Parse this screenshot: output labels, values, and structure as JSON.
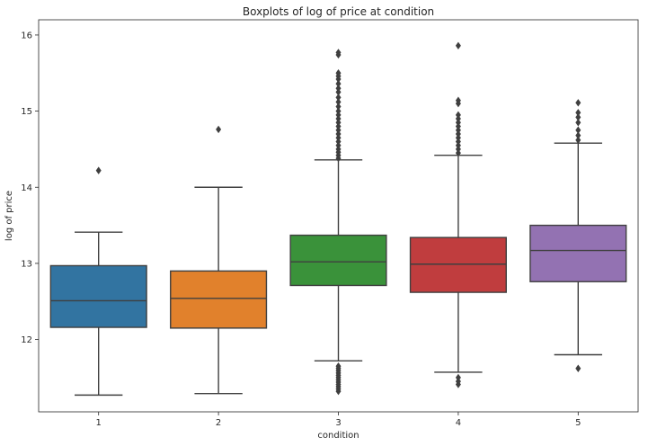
{
  "chart_data": {
    "type": "box",
    "title": "Boxplots of log of price at condition",
    "xlabel": "condition",
    "ylabel": "log of price",
    "ylim": [
      11.05,
      16.2
    ],
    "yticks": [
      12,
      13,
      14,
      15,
      16
    ],
    "grid": false,
    "categories": [
      "1",
      "2",
      "3",
      "4",
      "5"
    ],
    "colors": [
      "#3274a1",
      "#e1812c",
      "#3a923a",
      "#c03d3e",
      "#9372b2"
    ],
    "boxes": [
      {
        "category": "1",
        "whisker_low": 11.27,
        "q1": 12.16,
        "median": 12.51,
        "q3": 12.97,
        "whisker_high": 13.41,
        "outliers": [
          14.22
        ]
      },
      {
        "category": "2",
        "whisker_low": 11.29,
        "q1": 12.15,
        "median": 12.54,
        "q3": 12.9,
        "whisker_high": 14.0,
        "outliers": [
          14.76
        ]
      },
      {
        "category": "3",
        "whisker_low": 11.72,
        "q1": 12.71,
        "median": 13.02,
        "q3": 13.37,
        "whisker_high": 14.36,
        "outliers": [
          11.32,
          11.35,
          11.38,
          11.41,
          11.44,
          11.47,
          11.5,
          11.53,
          11.56,
          11.59,
          11.62,
          11.65,
          14.38,
          14.42,
          14.46,
          14.5,
          14.55,
          14.6,
          14.65,
          14.7,
          14.75,
          14.8,
          14.85,
          14.9,
          14.95,
          15.0,
          15.06,
          15.12,
          15.18,
          15.25,
          15.3,
          15.36,
          15.42,
          15.46,
          15.5,
          15.74,
          15.77
        ]
      },
      {
        "category": "4",
        "whisker_low": 11.57,
        "q1": 12.62,
        "median": 12.99,
        "q3": 13.34,
        "whisker_high": 14.42,
        "outliers": [
          11.41,
          11.45,
          11.5,
          14.45,
          14.5,
          14.55,
          14.6,
          14.65,
          14.7,
          14.75,
          14.8,
          14.85,
          14.9,
          14.95,
          15.1,
          15.14,
          15.86
        ]
      },
      {
        "category": "5",
        "whisker_low": 11.8,
        "q1": 12.76,
        "median": 13.17,
        "q3": 13.5,
        "whisker_high": 14.58,
        "outliers": [
          11.62,
          14.62,
          14.68,
          14.75,
          14.85,
          14.92,
          14.98,
          15.11
        ]
      }
    ]
  }
}
